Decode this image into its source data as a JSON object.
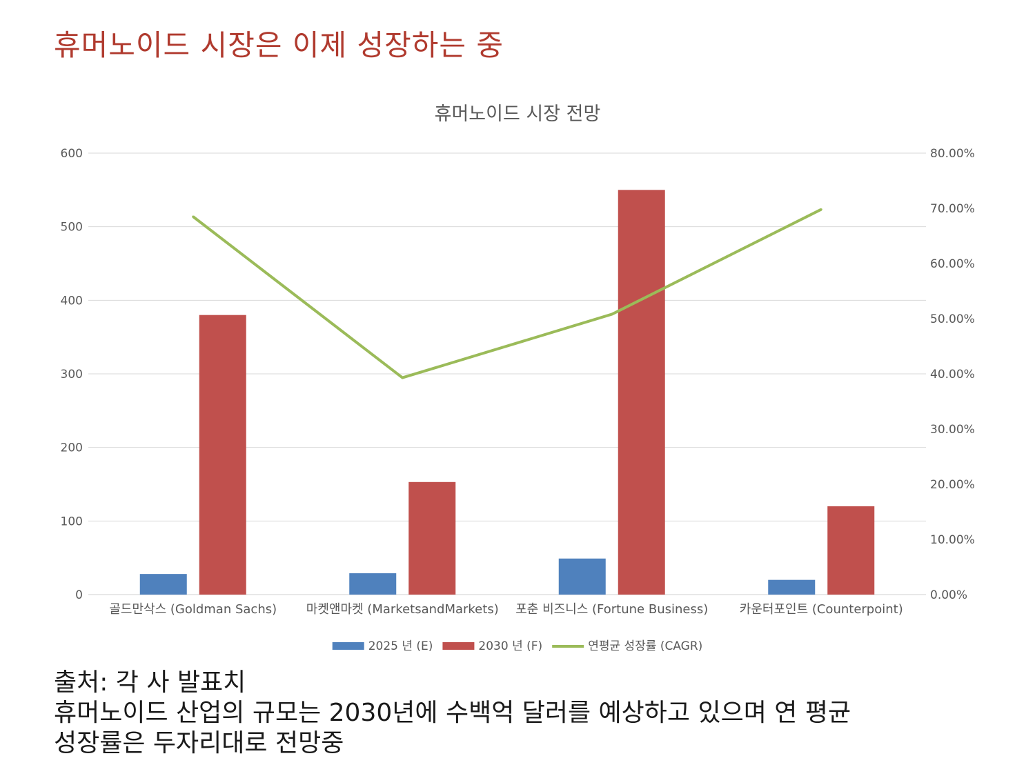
{
  "slide": {
    "title": "휴머노이드 시장은 이제 성장하는 중"
  },
  "chart_data": {
    "type": "bar",
    "title": "휴머노이드 시장 전망",
    "categories": [
      "골드만삭스 (Goldman Sachs)",
      "마켓앤마켓 (MarketsandMarkets)",
      "포춘 비즈니스 (Fortune Business)",
      "카운터포인트 (Counterpoint)"
    ],
    "series": [
      {
        "name": "2025 년 (E)",
        "type": "bar",
        "axis": "left",
        "color": "#4f81bd",
        "values": [
          28,
          29,
          49,
          20
        ]
      },
      {
        "name": "2030 년 (F)",
        "type": "bar",
        "axis": "left",
        "color": "#c0504d",
        "values": [
          380,
          153,
          550,
          120
        ]
      },
      {
        "name": "연평균 성장률 (CAGR)",
        "type": "line",
        "axis": "right",
        "color": "#9bbb59",
        "values": [
          0.685,
          0.393,
          0.508,
          0.698
        ]
      }
    ],
    "ylim": [
      0,
      600
    ],
    "yticks": [
      "600",
      "500",
      "400",
      "300",
      "200",
      "100",
      "0"
    ],
    "y2lim": [
      0,
      0.8
    ],
    "y2ticks": [
      "80.00%",
      "70.00%",
      "60.00%",
      "50.00%",
      "40.00%",
      "30.00%",
      "20.00%",
      "10.00%",
      "0.00%"
    ],
    "grid": true,
    "legend": "bottom"
  },
  "footer": {
    "source": "출처: 각 사 발표치",
    "note_line1": "휴머노이드 산업의 규모는 2030년에 수백억 달러를 예상하고 있으며 연 평균",
    "note_line2": "성장률은 두자리대로 전망중"
  }
}
